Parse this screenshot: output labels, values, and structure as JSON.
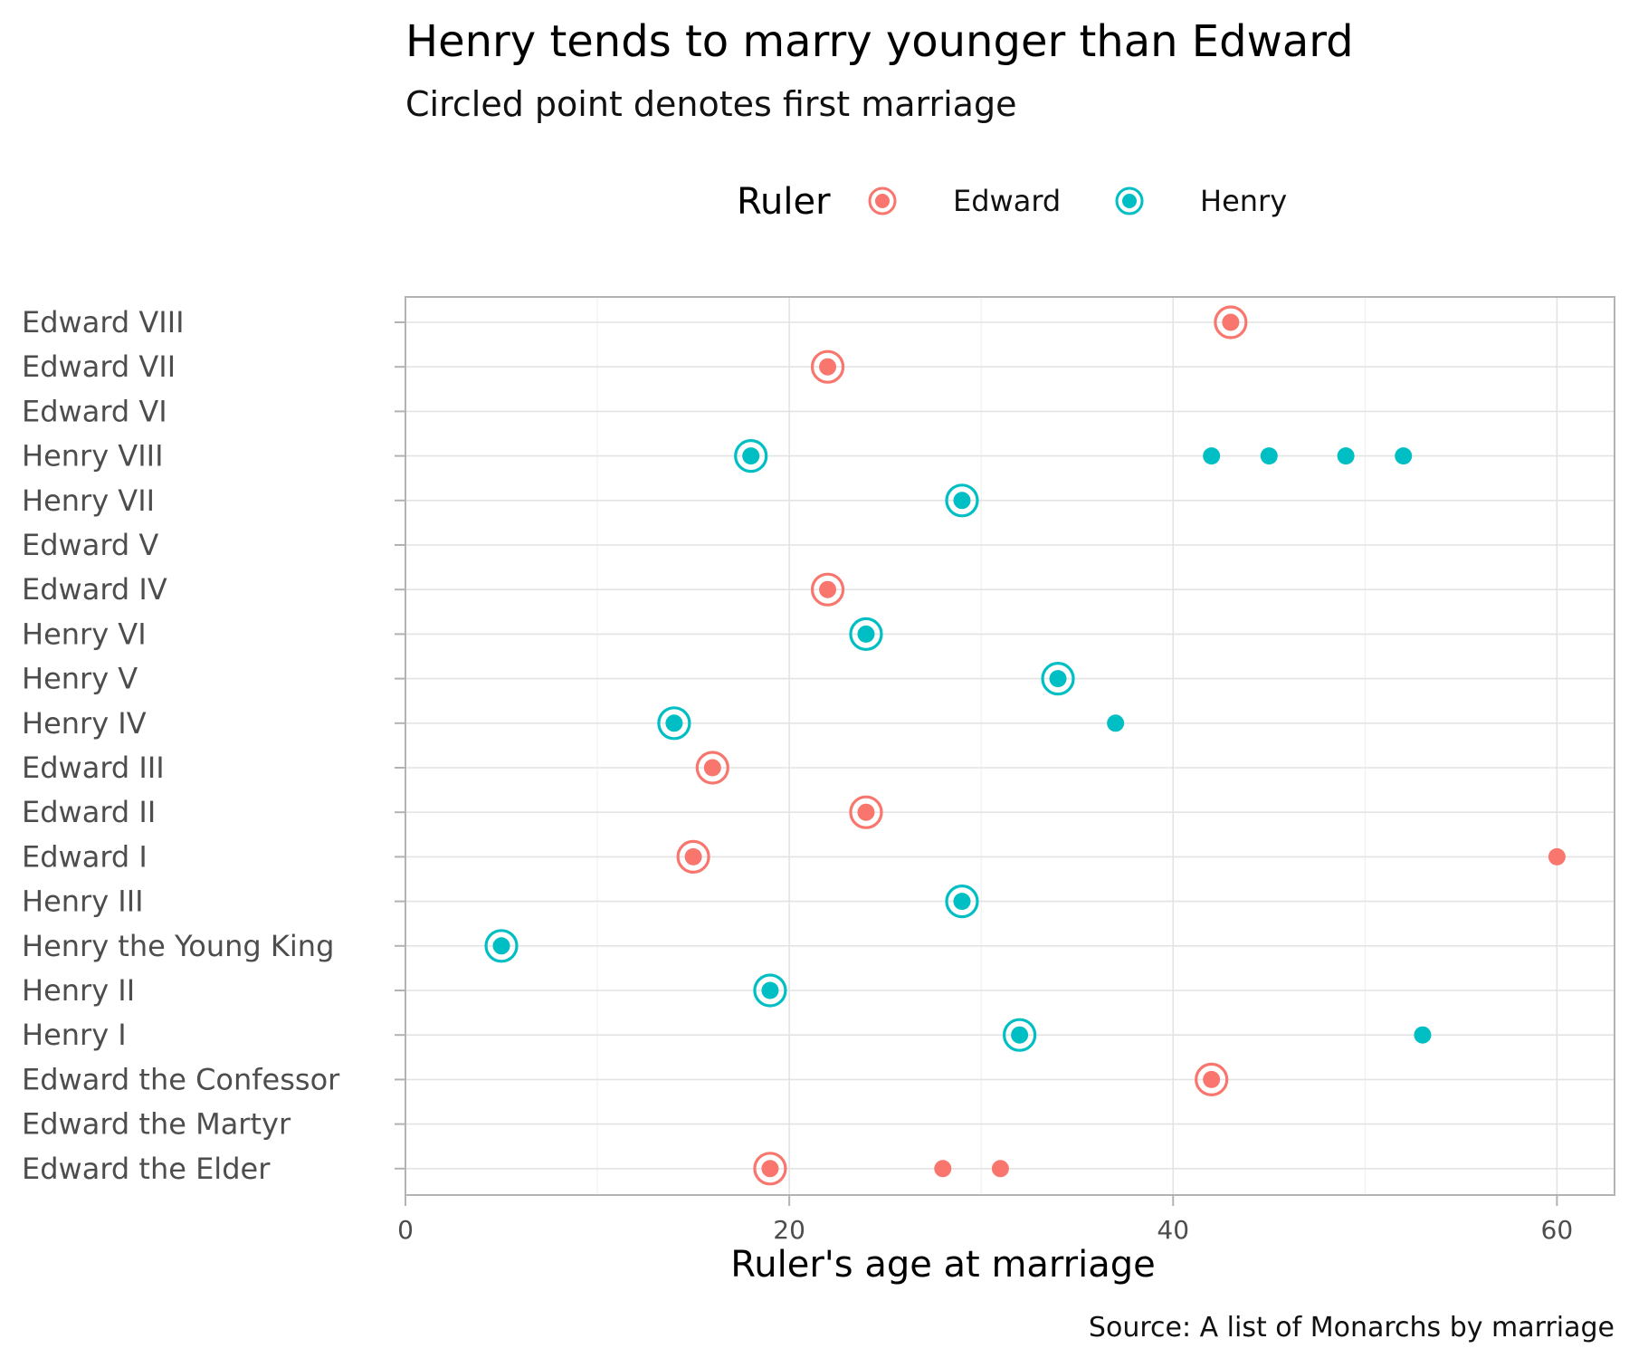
{
  "chart_data": {
    "type": "scatter",
    "title": "Henry tends to marry younger than Edward",
    "subtitle": "Circled point denotes first marriage",
    "xlabel": "Ruler's age at marriage",
    "ylabel": "",
    "caption": "Source: A list of Monarchs by marriage",
    "xlim": [
      0,
      63
    ],
    "x_ticks": [
      0,
      20,
      40,
      60
    ],
    "grid": true,
    "legend": {
      "title": "Ruler",
      "placement": "top",
      "entries": [
        {
          "name": "Edward",
          "color": "#F8766D"
        },
        {
          "name": "Henry",
          "color": "#00BFC4"
        }
      ]
    },
    "categories": [
      "Edward VIII",
      "Edward VII",
      "Edward VI",
      "Henry VIII",
      "Henry VII",
      "Edward V",
      "Edward IV",
      "Henry VI",
      "Henry V",
      "Henry IV",
      "Edward III",
      "Edward II",
      "Edward I",
      "Henry III",
      "Henry the Young King",
      "Henry II",
      "Henry I",
      "Edward the Confessor",
      "Edward the Martyr",
      "Edward the Elder"
    ],
    "series": [
      {
        "name": "Edward",
        "color": "#F8766D",
        "points": [
          {
            "ruler": "Edward VIII",
            "age": 43,
            "first": true
          },
          {
            "ruler": "Edward VII",
            "age": 22,
            "first": true
          },
          {
            "ruler": "Edward IV",
            "age": 22,
            "first": true
          },
          {
            "ruler": "Edward III",
            "age": 16,
            "first": true
          },
          {
            "ruler": "Edward II",
            "age": 24,
            "first": true
          },
          {
            "ruler": "Edward I",
            "age": 15,
            "first": true
          },
          {
            "ruler": "Edward I",
            "age": 60,
            "first": false
          },
          {
            "ruler": "Edward the Confessor",
            "age": 42,
            "first": true
          },
          {
            "ruler": "Edward the Elder",
            "age": 19,
            "first": true
          },
          {
            "ruler": "Edward the Elder",
            "age": 28,
            "first": false
          },
          {
            "ruler": "Edward the Elder",
            "age": 31,
            "first": false
          }
        ]
      },
      {
        "name": "Henry",
        "color": "#00BFC4",
        "points": [
          {
            "ruler": "Henry VIII",
            "age": 18,
            "first": true
          },
          {
            "ruler": "Henry VIII",
            "age": 42,
            "first": false
          },
          {
            "ruler": "Henry VIII",
            "age": 45,
            "first": false
          },
          {
            "ruler": "Henry VIII",
            "age": 49,
            "first": false
          },
          {
            "ruler": "Henry VIII",
            "age": 52,
            "first": false
          },
          {
            "ruler": "Henry VII",
            "age": 29,
            "first": true
          },
          {
            "ruler": "Henry VI",
            "age": 24,
            "first": true
          },
          {
            "ruler": "Henry V",
            "age": 34,
            "first": true
          },
          {
            "ruler": "Henry IV",
            "age": 14,
            "first": true
          },
          {
            "ruler": "Henry IV",
            "age": 37,
            "first": false
          },
          {
            "ruler": "Henry III",
            "age": 29,
            "first": true
          },
          {
            "ruler": "Henry the Young King",
            "age": 5,
            "first": true
          },
          {
            "ruler": "Henry II",
            "age": 19,
            "first": true
          },
          {
            "ruler": "Henry I",
            "age": 32,
            "first": true
          },
          {
            "ruler": "Henry I",
            "age": 53,
            "first": false
          }
        ]
      }
    ]
  }
}
